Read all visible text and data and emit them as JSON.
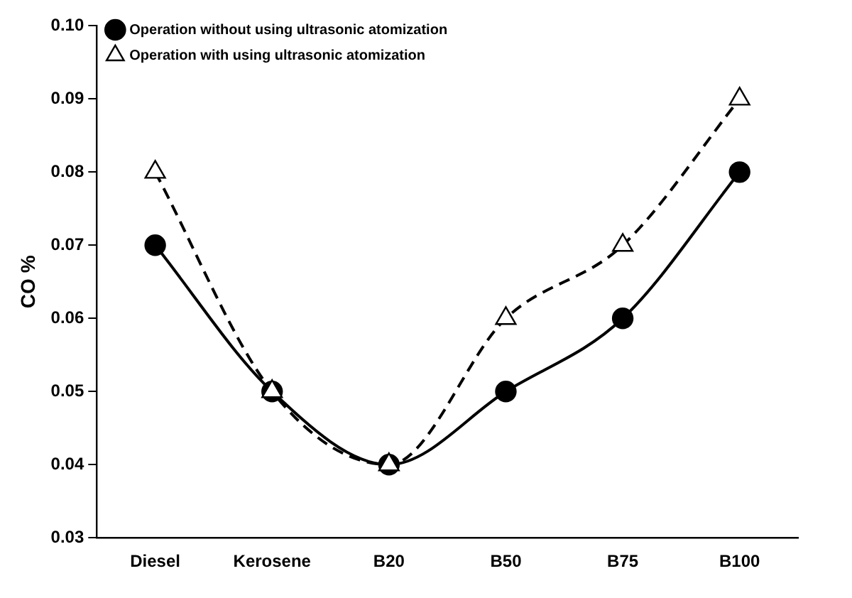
{
  "chart_data": {
    "type": "line",
    "ylabel": "CO %",
    "categories": [
      "Diesel",
      "Kerosene",
      "B20",
      "B50",
      "B75",
      "B100"
    ],
    "series": [
      {
        "name": "Operation without using ultrasonic atomization",
        "color": "#000000",
        "marker": "circle",
        "line_style": "solid",
        "values": [
          0.07,
          0.05,
          0.04,
          0.05,
          0.06,
          0.08
        ]
      },
      {
        "name": "Operation with using ultrasonic atomization",
        "color": "#000000",
        "marker": "triangle",
        "line_style": "dashed",
        "values": [
          0.08,
          0.05,
          0.04,
          0.06,
          0.07,
          0.09
        ]
      }
    ],
    "ylim": [
      0.03,
      0.1
    ],
    "yticks": [
      {
        "value": 0.03,
        "label": "0.03"
      },
      {
        "value": 0.04,
        "label": "0.04"
      },
      {
        "value": 0.05,
        "label": "0.05"
      },
      {
        "value": 0.06,
        "label": "0.06"
      },
      {
        "value": 0.07,
        "label": "0.07"
      },
      {
        "value": 0.08,
        "label": "0.08"
      },
      {
        "value": 0.09,
        "label": "0.09"
      },
      {
        "value": 0.1,
        "label": "0.10"
      }
    ],
    "grid": false,
    "legend": "top left"
  }
}
